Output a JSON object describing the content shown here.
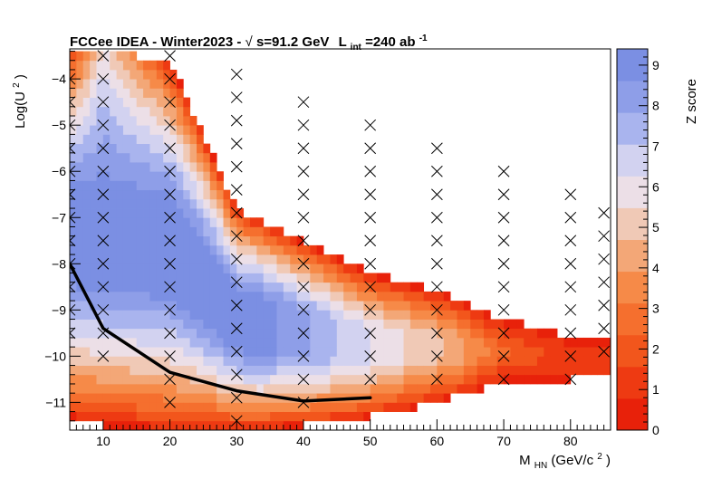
{
  "chart_data": {
    "type": "heatmap",
    "title": {
      "prefix": "FCCee IDEA - Winter2023 - ",
      "sqrt_s": "s=91.2 GeV",
      "lumi_L": "L",
      "lumi_sub": "int",
      "lumi_value": "=240 ab",
      "lumi_sup": "-1"
    },
    "xlabel": {
      "main": "M",
      "sub": "HN",
      "unit": " (GeV/c",
      "unit_sup": "2",
      "unit_close": ")"
    },
    "ylabel": {
      "main": "Log(U",
      "sup": "2",
      "close": ")"
    },
    "zlabel": "Z score",
    "xlim": [
      5,
      86
    ],
    "ylim": [
      -11.6,
      -3.35
    ],
    "zlim": [
      0,
      9.4
    ],
    "x_ticks": [
      10,
      20,
      30,
      40,
      50,
      60,
      70,
      80
    ],
    "y_ticks": [
      -11,
      -10,
      -9,
      -8,
      -7,
      -6,
      -5,
      -4
    ],
    "z_ticks": [
      0,
      1,
      2,
      3,
      4,
      5,
      6,
      7,
      8,
      9
    ],
    "tick_labels_x": [
      "10",
      "20",
      "30",
      "40",
      "50",
      "60",
      "70",
      "80"
    ],
    "tick_labels_y": [
      "−11",
      "−10",
      "−9",
      "−8",
      "−7",
      "−6",
      "−5",
      "−4"
    ],
    "tick_labels_z": [
      "0",
      "1",
      "2",
      "3",
      "4",
      "5",
      "6",
      "7",
      "8",
      "9"
    ],
    "colors": {
      "palette": [
        "#e8210a",
        "#ee3a12",
        "#f2561c",
        "#f56f2e",
        "#f68a48",
        "#f3a777",
        "#f0c9b6",
        "#ecdfe7",
        "#d2d2f0",
        "#a9b4ee",
        "#8e9ee8",
        "#7b8fe3"
      ],
      "exclusion_line": "#000000",
      "marker": "#000000"
    },
    "heatmap_cells": [
      {
        "x": 5,
        "y_min": -11.3,
        "y_max": -3.4,
        "z_bottom": 0.6,
        "z_top": 0.5
      },
      {
        "x": 10,
        "y_min": -11.5,
        "y_max": -3.4,
        "z_bottom": 0.2,
        "z_top": 5.5
      },
      {
        "x": 20,
        "y_min": -11.6,
        "y_max": -3.6,
        "z_bottom": 0.3,
        "z_top": 0.6
      },
      {
        "x": 30,
        "y_min": -11.6,
        "y_max": -6.8,
        "z_bottom": 0.2,
        "z_top": 0.3
      },
      {
        "x": 40,
        "y_min": -11.5,
        "y_max": -7.5,
        "z_bottom": 0.4,
        "z_top": 0.3
      },
      {
        "x": 50,
        "y_min": -11.3,
        "y_max": -8.2,
        "z_bottom": 0.6,
        "z_top": 0.2
      },
      {
        "x": 60,
        "y_min": -11.0,
        "y_max": -8.6,
        "z_bottom": 0.3,
        "z_top": 0.2
      },
      {
        "x": 70,
        "y_min": -10.6,
        "y_max": -9.2,
        "z_bottom": 0.2,
        "z_top": 0.3
      },
      {
        "x": 80,
        "y_min": -10.5,
        "y_max": -9.6,
        "z_bottom": 0.3,
        "z_top": 0.3
      }
    ],
    "exclusion_line": {
      "x": [
        5,
        10,
        20,
        30,
        40,
        50
      ],
      "y": [
        -8.0,
        -9.4,
        -10.35,
        -10.75,
        -10.97,
        -10.9
      ]
    },
    "markers": [
      {
        "x": 5,
        "y": [
          -4.0,
          -4.5,
          -5.0,
          -5.5,
          -6.0,
          -6.5,
          -7.0,
          -7.5,
          -8.0,
          -8.5,
          -9.0,
          -9.5
        ]
      },
      {
        "x": 10,
        "y": [
          -3.5,
          -4.0,
          -4.5,
          -5.0,
          -5.5,
          -6.0,
          -6.5,
          -7.0,
          -7.5,
          -8.0,
          -8.5,
          -9.0,
          -9.5,
          -10.0
        ]
      },
      {
        "x": 20,
        "y": [
          -3.5,
          -4.0,
          -4.5,
          -5.0,
          -5.5,
          -6.0,
          -6.5,
          -7.0,
          -7.5,
          -8.0,
          -8.5,
          -9.0,
          -9.5,
          -10.0,
          -10.5,
          -11.0
        ]
      },
      {
        "x": 30,
        "y": [
          -3.9,
          -4.4,
          -4.9,
          -5.4,
          -5.9,
          -6.4,
          -6.9,
          -7.4,
          -7.9,
          -8.4,
          -8.9,
          -9.4,
          -9.9,
          -10.4,
          -10.9,
          -11.4
        ]
      },
      {
        "x": 40,
        "y": [
          -4.5,
          -5.0,
          -5.5,
          -6.0,
          -6.5,
          -7.0,
          -7.5,
          -8.0,
          -8.5,
          -9.0,
          -9.5,
          -10.0,
          -10.5,
          -11.0
        ]
      },
      {
        "x": 50,
        "y": [
          -5.0,
          -5.5,
          -6.0,
          -6.5,
          -7.0,
          -7.5,
          -8.0,
          -8.5,
          -9.0,
          -9.5,
          -10.0,
          -10.5
        ]
      },
      {
        "x": 60,
        "y": [
          -5.5,
          -6.0,
          -6.5,
          -7.0,
          -7.5,
          -8.0,
          -8.5,
          -9.0,
          -9.5,
          -10.0,
          -10.5
        ]
      },
      {
        "x": 70,
        "y": [
          -6.0,
          -6.5,
          -7.0,
          -7.5,
          -8.0,
          -8.5,
          -9.0,
          -9.5,
          -10.0,
          -10.5
        ]
      },
      {
        "x": 80,
        "y": [
          -6.5,
          -7.0,
          -7.5,
          -8.0,
          -8.5,
          -9.0,
          -9.5,
          -10.0,
          -10.5
        ]
      },
      {
        "x": 85,
        "y": [
          -6.9,
          -7.4,
          -7.9,
          -8.4,
          -8.9,
          -9.4,
          -9.9
        ]
      }
    ],
    "grid": false,
    "legend": "none",
    "colorbar": "right"
  }
}
